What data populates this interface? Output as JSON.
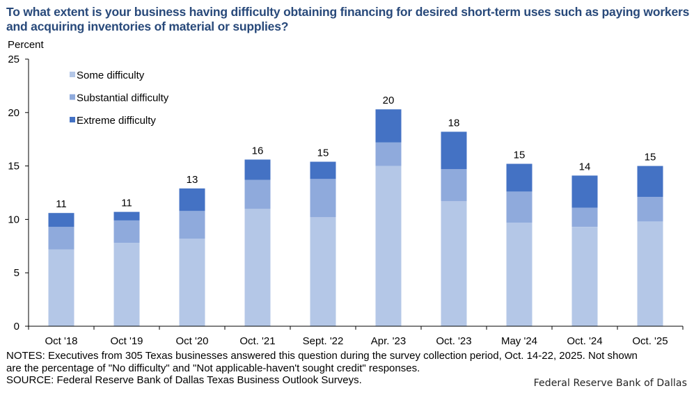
{
  "title": "To what extent is your business having difficulty obtaining financing for desired short-term uses such as paying workers and acquiring inventories of material or supplies?",
  "notes": {
    "line1": "NOTES: Executives from 305 Texas businesses answered this question during the survey collection period, Oct. 14-22, 2025. Not shown",
    "line2": "are the percentage of \"No difficulty\" and \"Not applicable-haven't sought credit\" responses.",
    "source": "SOURCE: Federal Reserve Bank of Dallas Texas Business Outlook Surveys."
  },
  "credit": "Federal Reserve Bank of Dallas",
  "chart_data": {
    "type": "bar",
    "stacked": true,
    "title": "To what extent is your business having difficulty obtaining financing for desired short-term uses such as paying workers and acquiring inventories of material or supplies?",
    "xlabel": "",
    "ylabel": "Percent",
    "ylim": [
      0,
      25
    ],
    "yticks": [
      0,
      5,
      10,
      15,
      20,
      25
    ],
    "grid": false,
    "legend_position": "top-left",
    "categories": [
      "Oct '18",
      "Oct '19",
      "Oct '20",
      "Oct. '21",
      "Sept. '22",
      "Apr. '23",
      "Oct. '23",
      "May '24",
      "Oct. '24",
      "Oct. '25"
    ],
    "series": [
      {
        "name": "Some difficulty",
        "color": "#b4c7e7",
        "values": [
          7.2,
          7.8,
          8.2,
          11.0,
          10.2,
          15.0,
          11.7,
          9.7,
          9.3,
          9.8
        ]
      },
      {
        "name": "Substantial difficulty",
        "color": "#8faadc",
        "values": [
          2.1,
          2.1,
          2.6,
          2.7,
          3.6,
          2.2,
          3.0,
          2.9,
          1.8,
          2.3
        ]
      },
      {
        "name": "Extreme difficulty",
        "color": "#4472c4",
        "values": [
          1.3,
          0.8,
          2.1,
          1.9,
          1.6,
          3.1,
          3.5,
          2.6,
          3.0,
          2.9
        ]
      }
    ],
    "total_labels": [
      "11",
      "11",
      "13",
      "16",
      "15",
      "20",
      "18",
      "15",
      "14",
      "15"
    ]
  }
}
